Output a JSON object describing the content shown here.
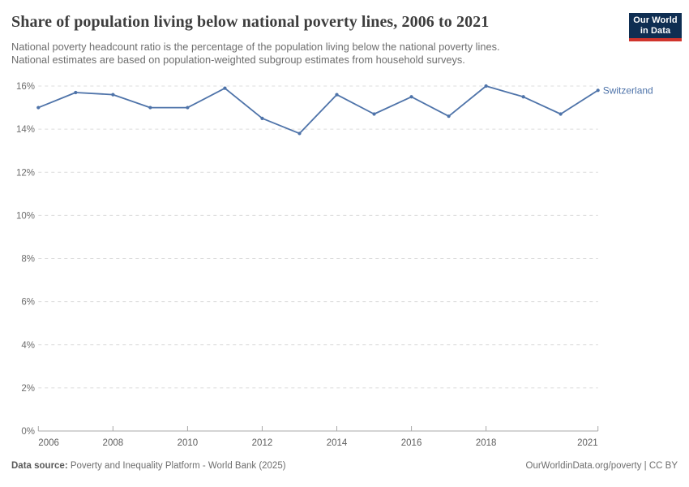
{
  "header": {
    "title": "Share of population living below national poverty lines, 2006 to 2021",
    "subtitle_line1": "National poverty headcount ratio is the percentage of the population living below the national poverty lines.",
    "subtitle_line2": "National estimates are based on population-weighted subgroup estimates from household surveys."
  },
  "logo": {
    "line1": "Our World",
    "line2": "in Data",
    "bg_color": "#0f2e52",
    "stripe_color": "#d0342c"
  },
  "chart_data": {
    "type": "line",
    "title": "Share of population living below national poverty lines, 2006 to 2021",
    "xlabel": "",
    "ylabel": "",
    "xlim": [
      2006,
      2021
    ],
    "ylim": [
      0,
      16
    ],
    "xticks": [
      2006,
      2008,
      2010,
      2012,
      2014,
      2016,
      2018,
      2021
    ],
    "yticks": [
      0,
      2,
      4,
      6,
      8,
      10,
      12,
      14,
      16
    ],
    "ytick_suffix": "%",
    "grid": "horizontal-dashed",
    "legend_position": "end-of-line-label",
    "series": [
      {
        "name": "Switzerland",
        "color": "#4e73a9",
        "x": [
          2006,
          2007,
          2008,
          2009,
          2010,
          2011,
          2012,
          2013,
          2014,
          2015,
          2016,
          2017,
          2018,
          2019,
          2020,
          2021
        ],
        "values": [
          15.0,
          15.7,
          15.6,
          15.0,
          15.0,
          15.9,
          14.5,
          13.8,
          15.6,
          14.7,
          15.5,
          14.6,
          16.0,
          15.5,
          14.7,
          15.8
        ]
      }
    ],
    "colors": {
      "gridline": "#dcdcdc",
      "axis": "#a8a8a8",
      "y_tick_label": "#6d6d6d",
      "x_tick_label": "#606060"
    }
  },
  "footer": {
    "source_label": "Data source:",
    "source_text": " Poverty and Inequality Platform - World Bank (2025)",
    "credit": "OurWorldinData.org/poverty | CC BY"
  }
}
